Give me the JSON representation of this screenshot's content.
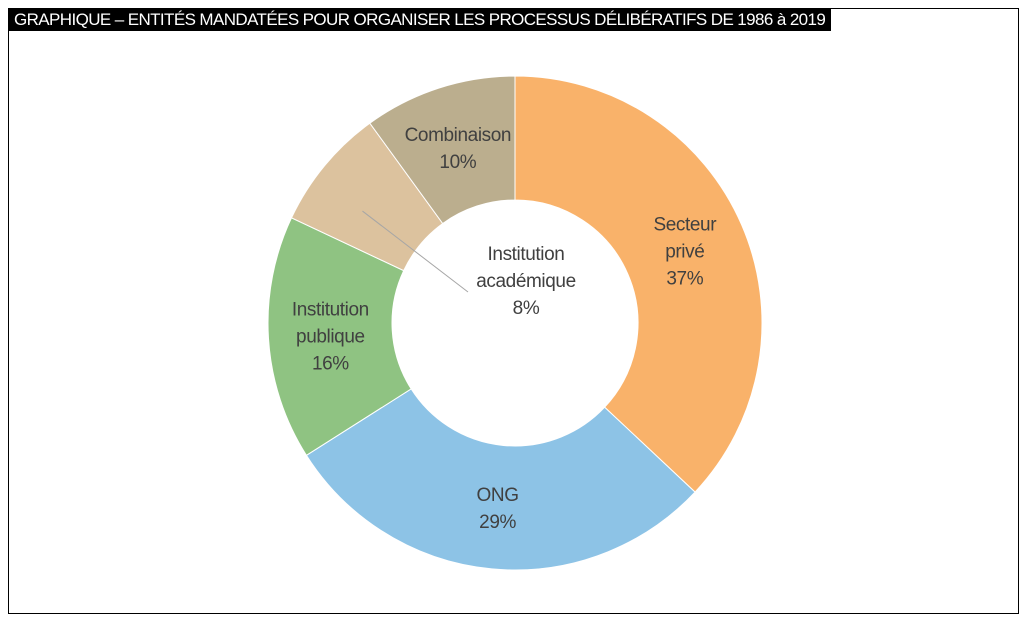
{
  "chart_data": {
    "type": "pie",
    "variant": "donut",
    "title": "GRAPHIQUE – ENTITÉS MANDATÉES POUR ORGANISER LES PROCESSUS DÉLIBÉRATIFS DE 1986 à 2019",
    "slices": [
      {
        "name": "Secteur privé",
        "lines": [
          "Secteur",
          "privé"
        ],
        "value": 37,
        "label": "37%",
        "color": "#F9B26A"
      },
      {
        "name": "ONG",
        "lines": [
          "ONG"
        ],
        "value": 29,
        "label": "29%",
        "color": "#8DC3E6"
      },
      {
        "name": "Institution publique",
        "lines": [
          "Institution",
          "publique"
        ],
        "value": 16,
        "label": "16%",
        "color": "#8FC382"
      },
      {
        "name": "Institution académique",
        "lines": [
          "Institution",
          "académique"
        ],
        "value": 8,
        "label": "8%",
        "color": "#DCC29E"
      },
      {
        "name": "Combinaison",
        "lines": [
          "Combinaison"
        ],
        "value": 10,
        "label": "10%",
        "color": "#BBAE8E"
      }
    ],
    "start": "top",
    "direction": "clockwise"
  }
}
